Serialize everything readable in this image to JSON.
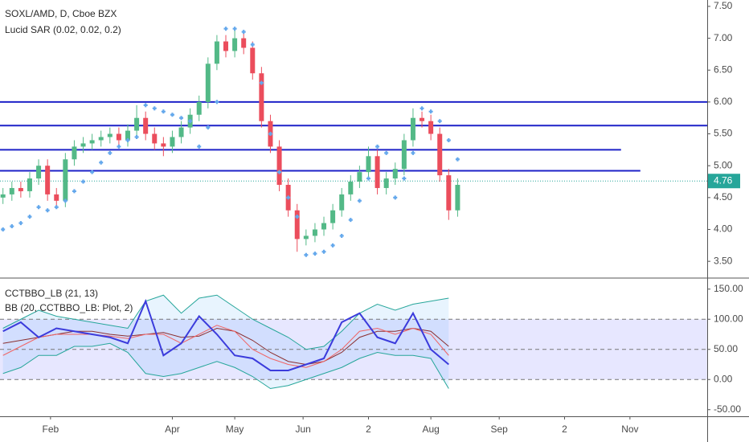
{
  "chart_data": [
    {
      "type": "candlestick",
      "title": "SOXL/AMD, D, Cboe BZX",
      "subtitle": "Lucid SAR (0.02, 0.02, 0.2)",
      "x": [
        1,
        4,
        7,
        10,
        13,
        16,
        19,
        22,
        25,
        28,
        31,
        34,
        37,
        40,
        43,
        46,
        49,
        52,
        55,
        58,
        61,
        64,
        67,
        70,
        73,
        76,
        79,
        82,
        85,
        88,
        91,
        94,
        97,
        100,
        103,
        106,
        109,
        112,
        115,
        118,
        121,
        124,
        127,
        130,
        133,
        136,
        139,
        142,
        145,
        148,
        151,
        154
      ],
      "open": [
        4.5,
        4.55,
        4.65,
        4.6,
        4.8,
        5.0,
        4.55,
        4.45,
        5.1,
        5.3,
        5.35,
        5.4,
        5.45,
        5.5,
        5.4,
        5.55,
        5.75,
        5.5,
        5.35,
        5.3,
        5.45,
        5.6,
        5.8,
        6.0,
        6.6,
        6.95,
        6.8,
        7.0,
        6.85,
        6.45,
        5.7,
        5.3,
        4.7,
        4.3,
        3.85,
        3.9,
        4.0,
        4.1,
        4.3,
        4.55,
        4.75,
        4.9,
        5.15,
        4.65,
        4.8,
        4.95,
        5.4,
        5.75,
        5.7,
        5.5,
        4.85,
        4.3
      ],
      "high": [
        4.65,
        4.75,
        4.75,
        4.9,
        5.1,
        5.1,
        4.65,
        5.2,
        5.4,
        5.45,
        5.5,
        5.55,
        5.6,
        5.6,
        5.65,
        5.95,
        5.85,
        5.6,
        5.45,
        5.55,
        5.7,
        5.9,
        6.1,
        6.7,
        7.05,
        7.05,
        7.15,
        7.1,
        6.95,
        6.55,
        5.8,
        5.4,
        4.8,
        4.4,
        4.0,
        4.1,
        4.2,
        4.4,
        4.65,
        4.85,
        5.0,
        5.3,
        5.25,
        4.9,
        5.05,
        5.5,
        5.9,
        5.85,
        5.8,
        5.6,
        4.95,
        4.8
      ],
      "low": [
        4.4,
        4.45,
        4.5,
        4.5,
        4.7,
        4.45,
        4.35,
        4.35,
        5.0,
        5.2,
        5.25,
        5.3,
        5.35,
        5.3,
        5.3,
        5.45,
        5.4,
        5.25,
        5.15,
        5.2,
        5.35,
        5.5,
        5.7,
        5.9,
        6.5,
        6.7,
        6.7,
        6.75,
        6.35,
        5.6,
        5.2,
        4.6,
        4.2,
        3.65,
        3.75,
        3.8,
        3.9,
        4.0,
        4.2,
        4.45,
        4.65,
        4.8,
        4.55,
        4.55,
        4.7,
        4.85,
        5.3,
        5.6,
        5.4,
        4.75,
        4.15,
        4.2
      ],
      "close": [
        4.55,
        4.65,
        4.6,
        4.8,
        5.0,
        4.55,
        4.45,
        5.1,
        5.3,
        5.35,
        5.4,
        5.45,
        5.5,
        5.4,
        5.55,
        5.75,
        5.5,
        5.35,
        5.3,
        5.45,
        5.6,
        5.8,
        6.0,
        6.6,
        6.95,
        6.8,
        7.0,
        6.85,
        6.45,
        5.7,
        5.3,
        4.7,
        4.3,
        3.85,
        3.9,
        4.0,
        4.1,
        4.3,
        4.55,
        4.75,
        4.9,
        5.15,
        4.65,
        4.8,
        4.95,
        5.4,
        5.75,
        5.7,
        5.5,
        4.85,
        4.3,
        4.7
      ],
      "up_color": "#53b987",
      "down_color": "#eb4d5c",
      "sar": {
        "color": "#64a8ec",
        "values": [
          4.0,
          4.05,
          4.1,
          4.2,
          4.35,
          4.3,
          4.35,
          4.45,
          4.6,
          4.75,
          4.9,
          5.05,
          5.2,
          5.3,
          5.4,
          5.45,
          5.95,
          5.9,
          5.85,
          5.8,
          5.75,
          5.7,
          5.3,
          5.6,
          6.0,
          7.15,
          7.15,
          7.1,
          6.9,
          6.3,
          5.5,
          4.9,
          4.5,
          4.2,
          3.6,
          3.62,
          3.65,
          3.75,
          3.9,
          4.15,
          4.45,
          4.8,
          5.3,
          5.2,
          4.5,
          4.8,
          5.2,
          5.9,
          5.85,
          5.7,
          5.4,
          5.1
        ]
      },
      "levels": [
        6.0,
        5.63,
        5.25,
        4.92
      ],
      "level_ends": [
        238,
        238,
        209,
        215.5
      ],
      "level_color": "#1e22c8",
      "last_price": 4.76,
      "last_price_color": "#26a69a",
      "xlim": [
        0,
        238
      ],
      "ylim": [
        3.25,
        7.6
      ],
      "yticks": [
        {
          "value": 3.5,
          "label": "3.50"
        },
        {
          "value": 4.0,
          "label": "4.00"
        },
        {
          "value": 4.5,
          "label": "4.50"
        },
        {
          "value": 5.0,
          "label": "5.00"
        },
        {
          "value": 5.5,
          "label": "5.50"
        },
        {
          "value": 6.0,
          "label": "6.00"
        },
        {
          "value": 6.5,
          "label": "6.50"
        },
        {
          "value": 7.0,
          "label": "7.00"
        },
        {
          "value": 7.5,
          "label": "7.50"
        }
      ]
    },
    {
      "type": "line",
      "title": "CCTBBO_LB (21, 13)",
      "subtitle": "BB (20, CCTBBO_LB: Plot, 2)",
      "x": [
        1,
        7,
        13,
        19,
        25,
        31,
        37,
        43,
        49,
        55,
        61,
        67,
        73,
        79,
        85,
        91,
        97,
        103,
        109,
        115,
        121,
        127,
        133,
        139,
        145,
        151
      ],
      "series": [
        {
          "color": "#26a69a",
          "values": [
            85,
            100,
            115,
            105,
            100,
            95,
            90,
            85,
            130,
            140,
            110,
            135,
            140,
            120,
            100,
            85,
            70,
            50,
            55,
            80,
            110,
            125,
            115,
            125,
            130,
            135
          ]
        },
        {
          "color": "#26a69a",
          "values": [
            10,
            20,
            40,
            40,
            55,
            55,
            60,
            45,
            10,
            5,
            10,
            20,
            30,
            20,
            5,
            -15,
            -10,
            0,
            10,
            20,
            35,
            45,
            40,
            40,
            35,
            -15
          ]
        },
        {
          "color": "#8b2f2f",
          "values": [
            60,
            65,
            70,
            75,
            80,
            80,
            75,
            72,
            75,
            78,
            70,
            72,
            85,
            80,
            65,
            45,
            30,
            25,
            30,
            45,
            70,
            80,
            80,
            85,
            80,
            55
          ]
        },
        {
          "color": "#f06464",
          "values": [
            40,
            55,
            70,
            75,
            75,
            75,
            72,
            68,
            75,
            75,
            60,
            75,
            90,
            80,
            50,
            35,
            25,
            20,
            30,
            50,
            80,
            85,
            75,
            85,
            75,
            40
          ]
        },
        {
          "color": "#3b3bdc",
          "values": [
            80,
            95,
            70,
            85,
            80,
            75,
            70,
            60,
            130,
            40,
            60,
            105,
            75,
            40,
            35,
            15,
            15,
            25,
            35,
            95,
            110,
            70,
            60,
            110,
            50,
            25
          ]
        }
      ],
      "levels": [
        0,
        50,
        100
      ],
      "xlim": [
        0,
        238
      ],
      "ylim": [
        -61,
        167
      ],
      "yticks": [
        {
          "value": -50,
          "label": "-50.00"
        },
        {
          "value": 0,
          "label": "0.00"
        },
        {
          "value": 50,
          "label": "50.00"
        },
        {
          "value": 100,
          "label": "100.00"
        },
        {
          "value": 150,
          "label": "150.00"
        }
      ],
      "xticks": [
        {
          "value": 17,
          "label": "Feb"
        },
        {
          "value": 58,
          "label": "Apr"
        },
        {
          "value": 79,
          "label": "May"
        },
        {
          "value": 102,
          "label": "Jun"
        },
        {
          "value": 124,
          "label": "2"
        },
        {
          "value": 145,
          "label": "Aug"
        },
        {
          "value": 168,
          "label": "Sep"
        },
        {
          "value": 190,
          "label": "2"
        },
        {
          "value": 212,
          "label": "Nov"
        }
      ]
    }
  ]
}
